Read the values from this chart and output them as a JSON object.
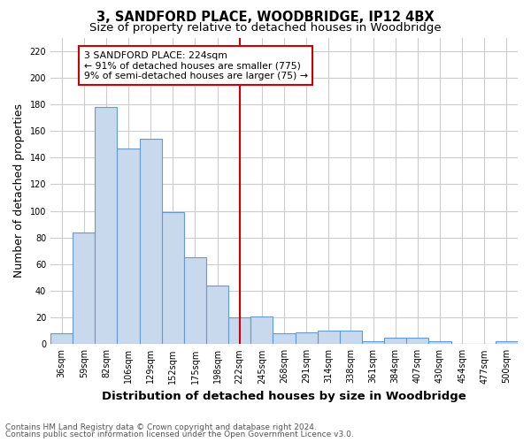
{
  "title": "3, SANDFORD PLACE, WOODBRIDGE, IP12 4BX",
  "subtitle": "Size of property relative to detached houses in Woodbridge",
  "xlabel": "Distribution of detached houses by size in Woodbridge",
  "ylabel": "Number of detached properties",
  "footnote1": "Contains HM Land Registry data © Crown copyright and database right 2024.",
  "footnote2": "Contains public sector information licensed under the Open Government Licence v3.0.",
  "categories": [
    "36sqm",
    "59sqm",
    "82sqm",
    "106sqm",
    "129sqm",
    "152sqm",
    "175sqm",
    "198sqm",
    "222sqm",
    "245sqm",
    "268sqm",
    "291sqm",
    "314sqm",
    "338sqm",
    "361sqm",
    "384sqm",
    "407sqm",
    "430sqm",
    "454sqm",
    "477sqm",
    "500sqm"
  ],
  "values": [
    8,
    84,
    178,
    147,
    154,
    99,
    65,
    44,
    20,
    21,
    8,
    9,
    10,
    10,
    2,
    5,
    5,
    2,
    0,
    0,
    2
  ],
  "bar_color": "#c8d8ed",
  "bar_edge_color": "#6699cc",
  "vline_x_index": 8,
  "vline_color": "#cc0000",
  "box_text_line1": "3 SANDFORD PLACE: 224sqm",
  "box_text_line2": "← 91% of detached houses are smaller (775)",
  "box_text_line3": "9% of semi-detached houses are larger (75) →",
  "box_color": "#cc0000",
  "box_fill": "white",
  "ylim": [
    0,
    230
  ],
  "yticks": [
    0,
    20,
    40,
    60,
    80,
    100,
    120,
    140,
    160,
    180,
    200,
    220
  ],
  "plot_bg_color": "white",
  "fig_bg_color": "white",
  "grid_color": "#cccccc",
  "title_fontsize": 10.5,
  "subtitle_fontsize": 9.5,
  "axis_label_fontsize": 9,
  "tick_fontsize": 7,
  "footnote_fontsize": 6.5,
  "footnote_color": "#555555"
}
